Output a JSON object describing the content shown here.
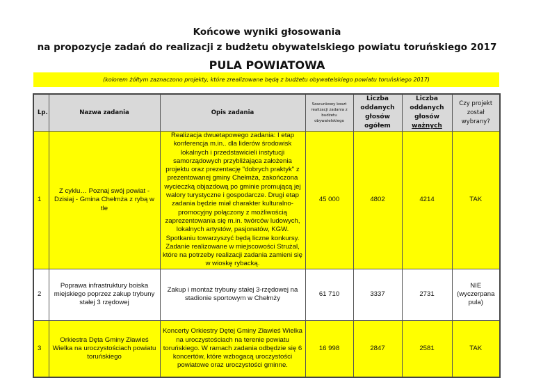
{
  "header": {
    "title_line1": "Końcowe wyniki głosowania",
    "title_line2": "na propozycje zadań do realizacji z budżetu obywatelskiego powiatu toruńskiego 2017",
    "pool": "PULA POWIATOWA",
    "note": "(kolorem żółtym zaznaczono projekty, które zrealizowane będą z budżetu obywatelskiego powiatu toruńskiego 2017)"
  },
  "colors": {
    "highlight": "#ffff00",
    "header_bg": "#d9d9d9"
  },
  "table": {
    "columns": {
      "lp": "Lp.",
      "name": "Nazwa zadania",
      "desc": "Opis zadania",
      "cost": "Szacunkowy koszt realizacji zadania z budżetu obywatelskiego",
      "votes_total_a": "Liczba oddanych",
      "votes_total_b": "głosów ogółem",
      "votes_valid_a": "Liczba oddanych",
      "votes_valid_b": "głosów ",
      "votes_valid_u": "ważnych",
      "selected": "Czy projekt został wybrany?"
    },
    "rows": [
      {
        "lp": "1",
        "name": "Z cyklu… Poznaj swój powiat - Dzisiaj - Gmina Chełmża z rybą w tle",
        "desc": "Realizacja dwuetapowego zadania: I etap konferencja m.in.. dla liderów środowisk lokalnych i przedstawicieli instytucji samorządowych przybliżająca założenia projektu oraz prezentację \"dobrych praktyk\" z prezentowanej gminy Chełmża, zakończona wycieczką objazdową po gminie promującą jej walory turystyczne i gospodarcze. Drugi etap zadania będzie miał charakter kulturalno-promocyjny połączony z możliwością zaprezentowania się m.in. twórców ludowych, lokalnych artystów, pasjonatów, KGW. Spotkaniu towarzyszyć będą liczne konkursy. Zadanie realizowane w miejscowości Strużal, które na potrzeby realizacji zadania zamieni się w wioskę rybacką.",
        "cost": "45 000",
        "votes_total": "4802",
        "votes_valid": "4214",
        "selected": "TAK",
        "highlighted": true
      },
      {
        "lp": "2",
        "name": "Poprawa infrastruktury boiska miejskiego poprzez zakup trybuny stałej 3 rzędowej",
        "desc": "Zakup i montaż trybuny stałej 3-rzędowej na stadionie sportowym w Chełmży",
        "cost": "61 710",
        "votes_total": "3337",
        "votes_valid": "2731",
        "selected": "NIE (wyczerpana pula)",
        "highlighted": false
      },
      {
        "lp": "3",
        "name": "Orkiestra Dęta Gminy Zławieś Wielka na uroczystościach powiatu toruńskiego",
        "desc": "Koncerty Orkiestry Dętej Gminy Zławieś Wielka na uroczystościach na terenie powiatu toruńskiego. W ramach zadania odbędzie się 6 koncertów, które wzbogacą uroczystości powiatowe oraz uroczystości gminne.",
        "cost": "16 998",
        "votes_total": "2847",
        "votes_valid": "2581",
        "selected": "TAK",
        "highlighted": true
      }
    ]
  }
}
